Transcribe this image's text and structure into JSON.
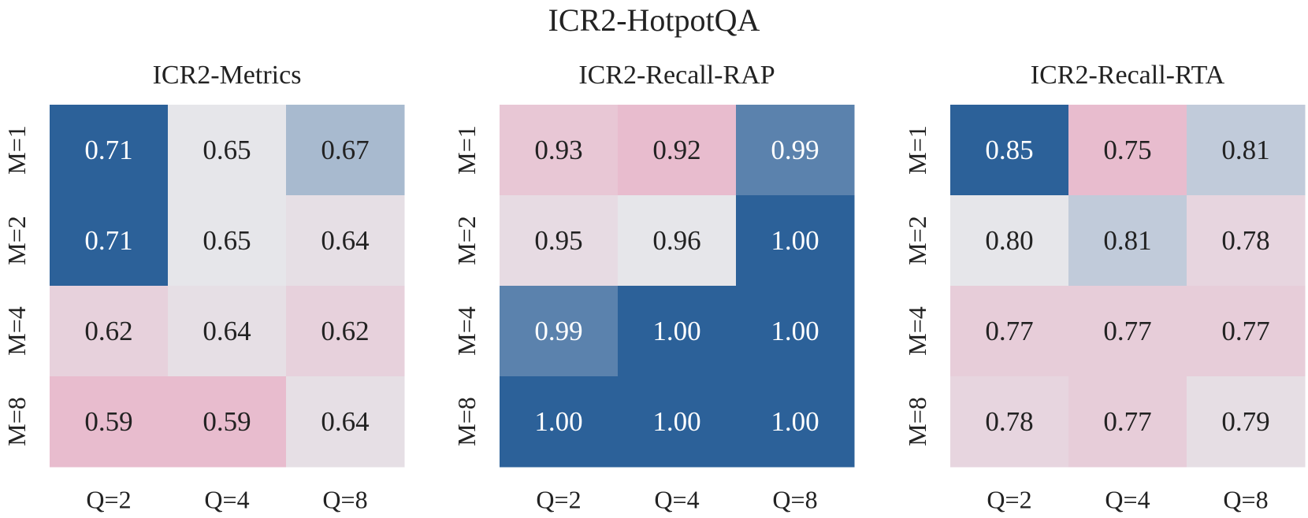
{
  "figure": {
    "title": "ICR2-HotpotQA"
  },
  "chart_data": [
    {
      "type": "heatmap",
      "title": "ICR2-Metrics",
      "x_categories": [
        "Q=2",
        "Q=4",
        "Q=8"
      ],
      "y_categories": [
        "M=1",
        "M=2",
        "M=4",
        "M=8"
      ],
      "values": [
        [
          0.71,
          0.65,
          0.67
        ],
        [
          0.71,
          0.65,
          0.64
        ],
        [
          0.62,
          0.64,
          0.62
        ],
        [
          0.59,
          0.59,
          0.64
        ]
      ],
      "value_labels": [
        [
          "0.71",
          "0.65",
          "0.67"
        ],
        [
          "0.71",
          "0.65",
          "0.64"
        ],
        [
          "0.62",
          "0.64",
          "0.62"
        ],
        [
          "0.59",
          "0.59",
          "0.64"
        ]
      ],
      "colormap": {
        "low": "#E8BCCE",
        "mid": "#E6E6EA",
        "high": "#2C6199"
      },
      "grid": false
    },
    {
      "type": "heatmap",
      "title": "ICR2-Recall-RAP",
      "x_categories": [
        "Q=2",
        "Q=4",
        "Q=8"
      ],
      "y_categories": [
        "M=1",
        "M=2",
        "M=4",
        "M=8"
      ],
      "values": [
        [
          0.93,
          0.92,
          0.99
        ],
        [
          0.95,
          0.96,
          1.0
        ],
        [
          0.99,
          1.0,
          1.0
        ],
        [
          1.0,
          1.0,
          1.0
        ]
      ],
      "value_labels": [
        [
          "0.93",
          "0.92",
          "0.99"
        ],
        [
          "0.95",
          "0.96",
          "1.00"
        ],
        [
          "0.99",
          "1.00",
          "1.00"
        ],
        [
          "1.00",
          "1.00",
          "1.00"
        ]
      ],
      "colormap": {
        "low": "#E8BCCE",
        "mid": "#E6E6EA",
        "high": "#2C6199"
      },
      "grid": false
    },
    {
      "type": "heatmap",
      "title": "ICR2-Recall-RTA",
      "x_categories": [
        "Q=2",
        "Q=4",
        "Q=8"
      ],
      "y_categories": [
        "M=1",
        "M=2",
        "M=4",
        "M=8"
      ],
      "values": [
        [
          0.85,
          0.75,
          0.81
        ],
        [
          0.8,
          0.81,
          0.78
        ],
        [
          0.77,
          0.77,
          0.77
        ],
        [
          0.78,
          0.77,
          0.79
        ]
      ],
      "value_labels": [
        [
          "0.85",
          "0.75",
          "0.81"
        ],
        [
          "0.80",
          "0.81",
          "0.78"
        ],
        [
          "0.77",
          "0.77",
          "0.77"
        ],
        [
          "0.78",
          "0.77",
          "0.79"
        ]
      ],
      "colormap": {
        "low": "#E8BCCE",
        "mid": "#E6E6EA",
        "high": "#2C6199"
      },
      "grid": false
    }
  ]
}
